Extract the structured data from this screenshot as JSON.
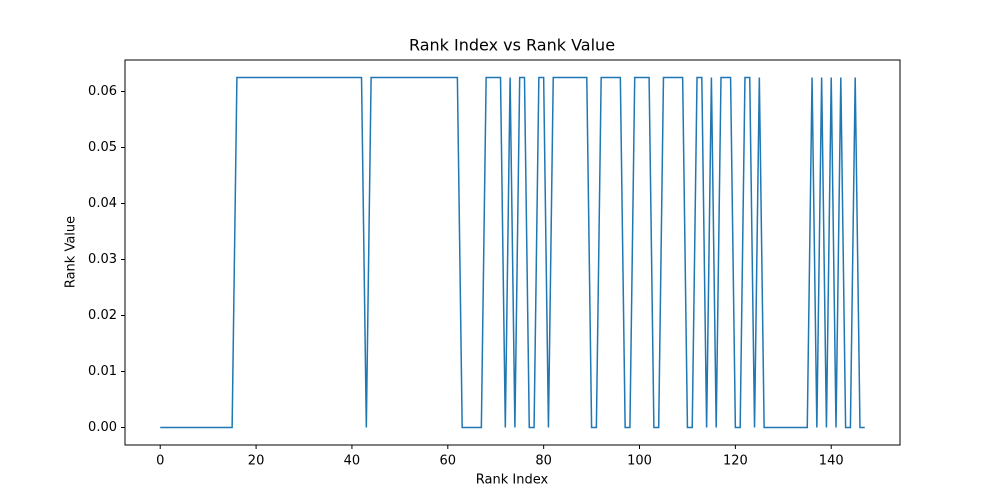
{
  "chart_data": {
    "type": "line",
    "title": "Rank Index vs Rank Value",
    "x_label": "Rank Index",
    "y_label": "Rank Value",
    "x": [
      0,
      1,
      2,
      3,
      4,
      5,
      6,
      7,
      8,
      9,
      10,
      11,
      12,
      13,
      14,
      15,
      16,
      17,
      18,
      19,
      20,
      21,
      22,
      23,
      24,
      25,
      26,
      27,
      28,
      29,
      30,
      31,
      32,
      33,
      34,
      35,
      36,
      37,
      38,
      39,
      40,
      41,
      42,
      43,
      44,
      45,
      46,
      47,
      48,
      49,
      50,
      51,
      52,
      53,
      54,
      55,
      56,
      57,
      58,
      59,
      60,
      61,
      62,
      63,
      64,
      65,
      66,
      67,
      68,
      69,
      70,
      71,
      72,
      73,
      74,
      75,
      76,
      77,
      78,
      79,
      80,
      81,
      82,
      83,
      84,
      85,
      86,
      87,
      88,
      89,
      90,
      91,
      92,
      93,
      94,
      95,
      96,
      97,
      98,
      99,
      100,
      101,
      102,
      103,
      104,
      105,
      106,
      107,
      108,
      109,
      110,
      111,
      112,
      113,
      114,
      115,
      116,
      117,
      118,
      119,
      120,
      121,
      122,
      123,
      124,
      125,
      126,
      127,
      128,
      129,
      130,
      131,
      132,
      133,
      134,
      135,
      136,
      137,
      138,
      139,
      140,
      141,
      142,
      143,
      144,
      145,
      146,
      147
    ],
    "series": [
      {
        "color": "#1f77b4",
        "values": [
          0,
          0,
          0,
          0,
          0,
          0,
          0,
          0,
          0,
          0,
          0,
          0,
          0,
          0,
          0,
          0,
          0.0625,
          0.0625,
          0.0625,
          0.0625,
          0.0625,
          0.0625,
          0.0625,
          0.0625,
          0.0625,
          0.0625,
          0.0625,
          0.0625,
          0.0625,
          0.0625,
          0.0625,
          0.0625,
          0.0625,
          0.0625,
          0.0625,
          0.0625,
          0.0625,
          0.0625,
          0.0625,
          0.0625,
          0.0625,
          0.0625,
          0.0625,
          0,
          0.0625,
          0.0625,
          0.0625,
          0.0625,
          0.0625,
          0.0625,
          0.0625,
          0.0625,
          0.0625,
          0.0625,
          0.0625,
          0.0625,
          0.0625,
          0.0625,
          0.0625,
          0.0625,
          0.0625,
          0.0625,
          0.0625,
          0,
          0,
          0,
          0,
          0,
          0.0625,
          0.0625,
          0.0625,
          0.0625,
          0,
          0.0625,
          0,
          0.0625,
          0.0625,
          0,
          0,
          0.0625,
          0.0625,
          0,
          0.0625,
          0.0625,
          0.0625,
          0.0625,
          0.0625,
          0.0625,
          0.0625,
          0.0625,
          0,
          0,
          0.0625,
          0.0625,
          0.0625,
          0.0625,
          0.0625,
          0,
          0,
          0.0625,
          0.0625,
          0.0625,
          0.0625,
          0,
          0,
          0.0625,
          0.0625,
          0.0625,
          0.0625,
          0.0625,
          0,
          0,
          0.0625,
          0.0625,
          0,
          0.0625,
          0,
          0.0625,
          0.0625,
          0.0625,
          0,
          0,
          0.0625,
          0.0625,
          0,
          0.0625,
          0,
          0,
          0,
          0,
          0,
          0,
          0,
          0,
          0,
          0,
          0.0625,
          0,
          0.0625,
          0,
          0.0625,
          0,
          0.0625,
          0,
          0,
          0.0625,
          0,
          0
        ]
      }
    ],
    "xlim": [
      -7.35,
      154.35
    ],
    "xticks": [
      0,
      20,
      40,
      60,
      80,
      100,
      120,
      140
    ],
    "ylim": [
      -0.003125,
      0.065625
    ],
    "yticks": [
      {
        "value": 0,
        "label": "0.00"
      },
      0.01,
      0.02,
      0.03,
      0.04,
      0.05,
      0.06
    ]
  }
}
